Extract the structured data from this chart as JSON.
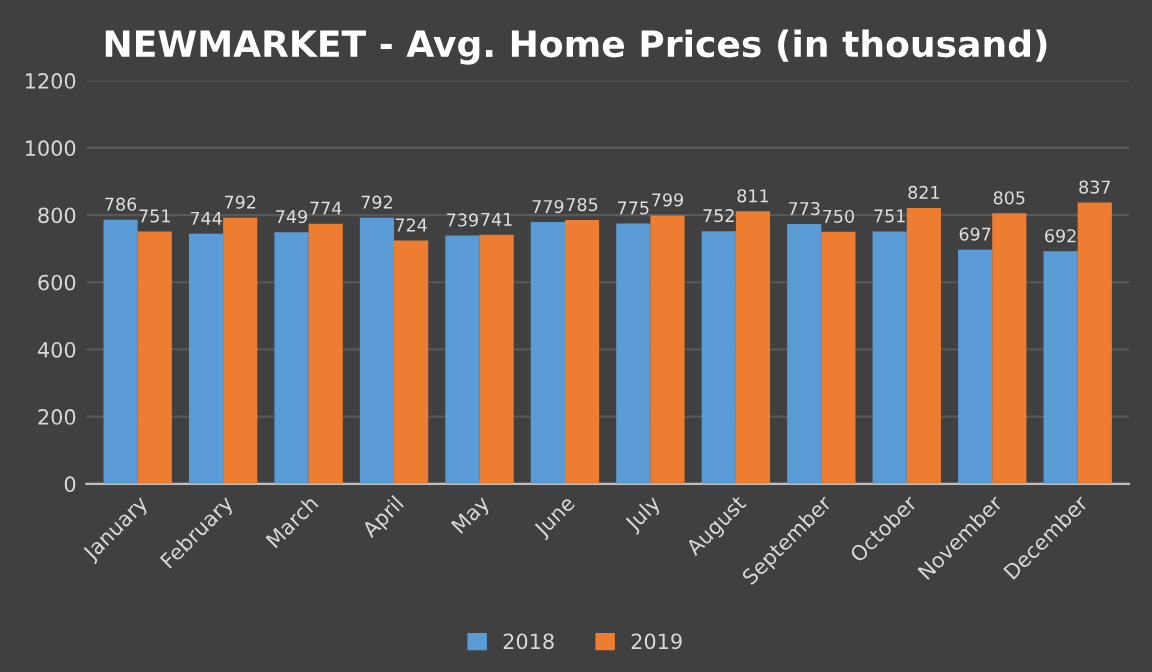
{
  "chart_data": {
    "type": "bar",
    "title": "NEWMARKET - Avg. Home Prices (in thousand)",
    "categories": [
      "January",
      "February",
      "March",
      "April",
      "May",
      "June",
      "July",
      "August",
      "September",
      "October",
      "November",
      "December"
    ],
    "series": [
      {
        "name": "2018",
        "color": "#5b9bd5",
        "values": [
          786,
          744,
          749,
          792,
          739,
          779,
          775,
          752,
          773,
          751,
          697,
          692
        ]
      },
      {
        "name": "2019",
        "color": "#ed7d31",
        "values": [
          751,
          792,
          774,
          724,
          741,
          785,
          799,
          811,
          750,
          821,
          805,
          837
        ]
      }
    ],
    "ylim": [
      0,
      1200
    ],
    "yticks": [
      0,
      200,
      400,
      600,
      800,
      1000,
      1200
    ],
    "grid": "y",
    "legend": "bottom",
    "data_labels": true
  }
}
